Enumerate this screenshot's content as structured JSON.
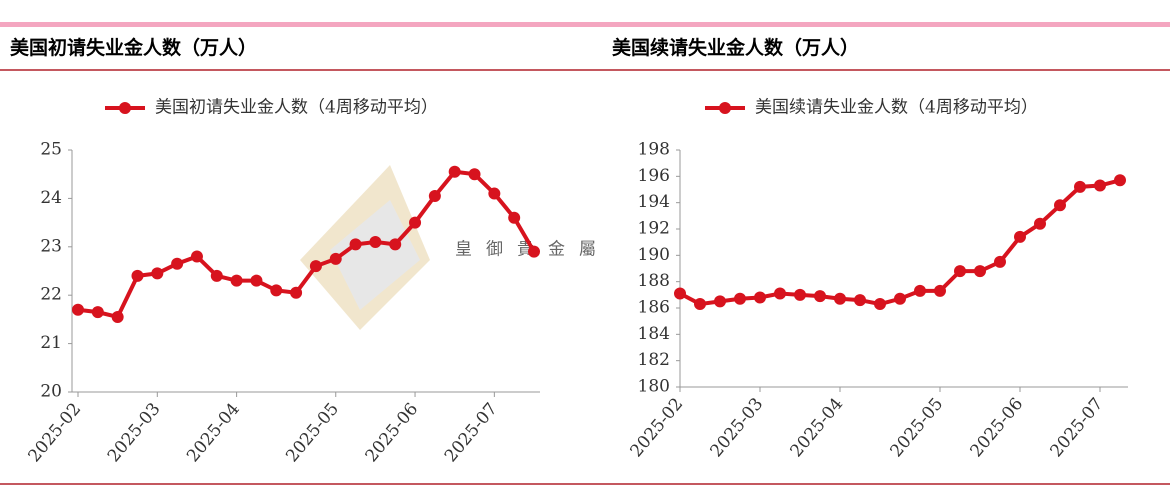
{
  "watermark": "皇御貴金屬",
  "chart_data": [
    {
      "type": "line",
      "title": "美国初请失业金人数（万人）",
      "categories": [
        "2025-02",
        null,
        null,
        null,
        "2025-03",
        null,
        null,
        null,
        "2025-04",
        null,
        null,
        null,
        null,
        "2025-05",
        null,
        null,
        null,
        "2025-06",
        null,
        null,
        null,
        "2025-07",
        null,
        null
      ],
      "series": [
        {
          "name": "美国初请失业金人数（4周移动平均）",
          "color": "#d7131e",
          "values": [
            21.7,
            21.65,
            21.55,
            22.4,
            22.45,
            22.65,
            22.8,
            22.4,
            22.3,
            22.3,
            22.1,
            22.05,
            22.6,
            22.75,
            23.05,
            23.1,
            23.05,
            23.5,
            24.05,
            24.55,
            24.5,
            24.1,
            23.6,
            22.9
          ]
        }
      ],
      "ylim": [
        20,
        25
      ],
      "yticks": [
        20,
        21,
        22,
        23,
        24,
        25
      ]
    },
    {
      "type": "line",
      "title": "美国续请失业金人数（万人）",
      "categories": [
        "2025-02",
        null,
        null,
        null,
        "2025-03",
        null,
        null,
        null,
        "2025-04",
        null,
        null,
        null,
        null,
        "2025-05",
        null,
        null,
        null,
        "2025-06",
        null,
        null,
        null,
        "2025-07",
        null
      ],
      "series": [
        {
          "name": "美国续请失业金人数（4周移动平均）",
          "color": "#d7131e",
          "values": [
            187.1,
            186.3,
            186.5,
            186.7,
            186.8,
            187.1,
            187.0,
            186.9,
            186.7,
            186.6,
            186.3,
            186.7,
            187.3,
            187.3,
            188.8,
            188.8,
            189.5,
            191.4,
            192.4,
            193.8,
            195.2,
            195.3,
            195.7
          ]
        }
      ],
      "ylim": [
        180,
        198
      ],
      "yticks": [
        180,
        182,
        184,
        186,
        188,
        190,
        192,
        194,
        196,
        198
      ]
    }
  ]
}
